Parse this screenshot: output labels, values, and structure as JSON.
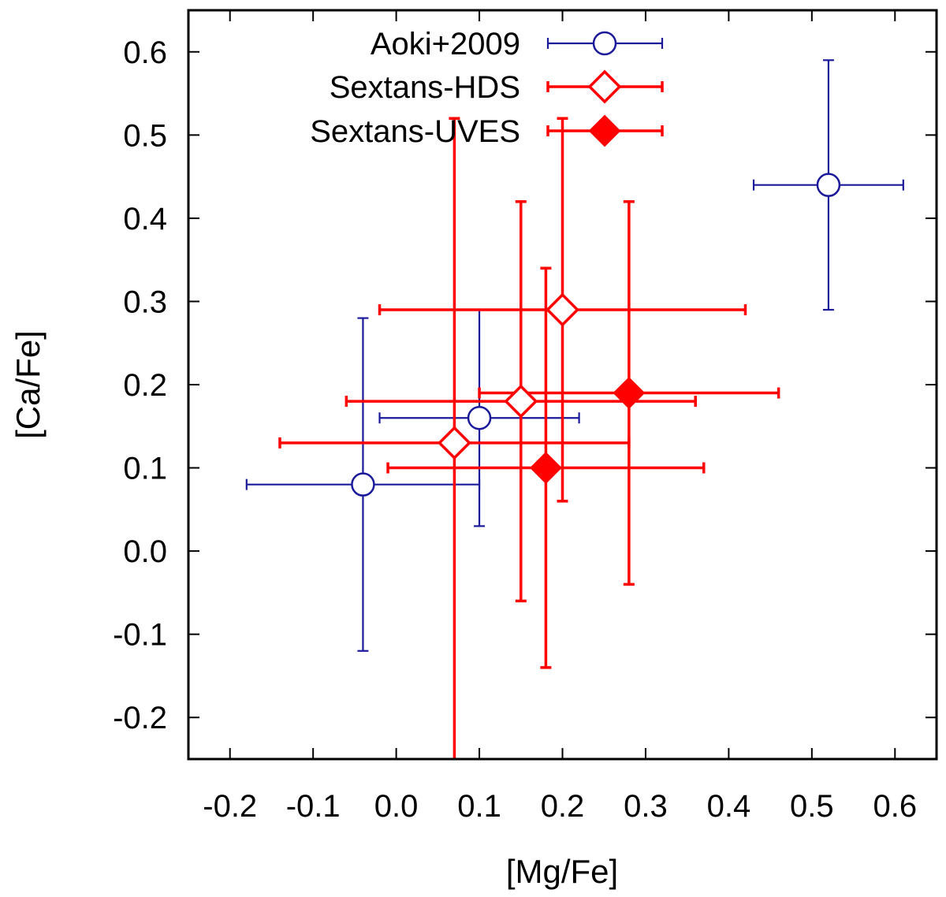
{
  "chart_data": {
    "type": "scatter",
    "xlabel": "[Mg/Fe]",
    "ylabel": "[Ca/Fe]",
    "xlim": [
      -0.25,
      0.65
    ],
    "ylim": [
      -0.25,
      0.65
    ],
    "xticks": [
      -0.2,
      -0.1,
      0.0,
      0.1,
      0.2,
      0.3,
      0.4,
      0.5,
      0.6
    ],
    "yticks": [
      -0.2,
      -0.1,
      0.0,
      0.1,
      0.2,
      0.3,
      0.4,
      0.5,
      0.6
    ],
    "xtick_labels": [
      "-0.2",
      "-0.1",
      "0.0",
      "0.1",
      "0.2",
      "0.3",
      "0.4",
      "0.5",
      "0.6"
    ],
    "ytick_labels": [
      "-0.2",
      "-0.1",
      "0.0",
      "0.1",
      "0.2",
      "0.3",
      "0.4",
      "0.5",
      "0.6"
    ],
    "legend_position": "top",
    "series": [
      {
        "name": "Aoki+2009",
        "marker": "open-circle",
        "color": "#1a1a9a",
        "points": [
          {
            "x": -0.04,
            "y": 0.08,
            "xerr_low": 0.14,
            "xerr_high": 0.14,
            "yerr_low": 0.2,
            "yerr_high": 0.2
          },
          {
            "x": 0.1,
            "y": 0.16,
            "xerr_low": 0.12,
            "xerr_high": 0.12,
            "yerr_low": 0.13,
            "yerr_high": 0.13
          },
          {
            "x": 0.52,
            "y": 0.44,
            "xerr_low": 0.09,
            "xerr_high": 0.09,
            "yerr_low": 0.15,
            "yerr_high": 0.15
          }
        ]
      },
      {
        "name": "Sextans-HDS",
        "marker": "open-diamond",
        "color": "#ff0000",
        "points": [
          {
            "x": 0.07,
            "y": 0.13,
            "xerr_low": 0.21,
            "xerr_high": 0.21,
            "yerr_low": 0.39,
            "yerr_high": 0.39
          },
          {
            "x": 0.15,
            "y": 0.18,
            "xerr_low": 0.21,
            "xerr_high": 0.21,
            "yerr_low": 0.24,
            "yerr_high": 0.24
          },
          {
            "x": 0.2,
            "y": 0.29,
            "xerr_low": 0.22,
            "xerr_high": 0.22,
            "yerr_low": 0.23,
            "yerr_high": 0.23
          }
        ]
      },
      {
        "name": "Sextans-UVES",
        "marker": "filled-diamond",
        "color": "#ff0000",
        "points": [
          {
            "x": 0.18,
            "y": 0.1,
            "xerr_low": 0.19,
            "xerr_high": 0.19,
            "yerr_low": 0.24,
            "yerr_high": 0.24
          },
          {
            "x": 0.28,
            "y": 0.19,
            "xerr_low": 0.18,
            "xerr_high": 0.18,
            "yerr_low": 0.23,
            "yerr_high": 0.23
          }
        ]
      }
    ]
  }
}
